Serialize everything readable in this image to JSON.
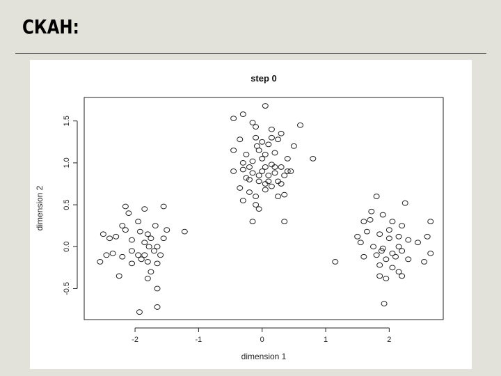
{
  "slide": {
    "title": "СКАН:"
  },
  "chart_data": {
    "type": "scatter",
    "title": "step 0",
    "xlabel": "dimension 1",
    "ylabel": "dimension 2",
    "xlim": [
      -2.8,
      2.85
    ],
    "ylim": [
      -0.87,
      1.78
    ],
    "x_ticks": [
      "-2",
      "-1",
      "0",
      "1",
      "2"
    ],
    "x_tick_values": [
      -2,
      -1,
      0,
      1,
      2
    ],
    "y_ticks": [
      "-0.5",
      "0.0",
      "0.5",
      "1.0",
      "1.5"
    ],
    "y_tick_values": [
      -0.5,
      0,
      0.5,
      1,
      1.5
    ],
    "grid": false,
    "points": [
      [
        -2.05,
        -0.2
      ],
      [
        -1.93,
        -0.78
      ],
      [
        -1.85,
        0.45
      ],
      [
        -1.92,
        0.18
      ],
      [
        -2.05,
        0.08
      ],
      [
        -2.15,
        0.2
      ],
      [
        -1.8,
        0.15
      ],
      [
        -1.78,
        0.0
      ],
      [
        -1.7,
        -0.05
      ],
      [
        -1.85,
        -0.1
      ],
      [
        -2.2,
        0.25
      ],
      [
        -2.4,
        0.1
      ],
      [
        -2.5,
        0.15
      ],
      [
        -2.45,
        -0.1
      ],
      [
        -2.55,
        -0.18
      ],
      [
        -2.35,
        -0.08
      ],
      [
        -2.2,
        -0.12
      ],
      [
        -1.95,
        -0.1
      ],
      [
        -1.6,
        -0.1
      ],
      [
        -1.65,
        0.0
      ],
      [
        -1.55,
        0.1
      ],
      [
        -1.5,
        0.2
      ],
      [
        -1.65,
        -0.2
      ],
      [
        -1.75,
        -0.3
      ],
      [
        -1.9,
        -0.15
      ],
      [
        -2.1,
        0.4
      ],
      [
        -2.15,
        0.48
      ],
      [
        -1.55,
        0.48
      ],
      [
        -1.65,
        -0.5
      ],
      [
        -1.65,
        -0.72
      ],
      [
        -1.75,
        0.1
      ],
      [
        -1.95,
        0.3
      ],
      [
        -1.22,
        0.18
      ],
      [
        -2.05,
        -0.05
      ],
      [
        -1.85,
        0.05
      ],
      [
        -1.8,
        -0.18
      ],
      [
        -2.25,
        -0.35
      ],
      [
        -1.8,
        -0.38
      ],
      [
        -1.68,
        0.25
      ],
      [
        -2.3,
        0.12
      ],
      [
        -0.3,
        1.58
      ],
      [
        0.05,
        1.68
      ],
      [
        -0.45,
        1.53
      ],
      [
        -0.15,
        1.48
      ],
      [
        -0.1,
        1.43
      ],
      [
        0.15,
        1.4
      ],
      [
        0.3,
        1.35
      ],
      [
        0.6,
        1.45
      ],
      [
        -0.35,
        1.28
      ],
      [
        -0.1,
        1.3
      ],
      [
        0.0,
        1.25
      ],
      [
        0.1,
        1.22
      ],
      [
        0.25,
        1.28
      ],
      [
        0.5,
        1.2
      ],
      [
        -0.45,
        1.15
      ],
      [
        -0.25,
        1.1
      ],
      [
        -0.05,
        1.15
      ],
      [
        0.05,
        1.1
      ],
      [
        0.2,
        1.12
      ],
      [
        0.4,
        1.05
      ],
      [
        -0.3,
        1.0
      ],
      [
        -0.15,
        1.02
      ],
      [
        0.0,
        1.05
      ],
      [
        0.15,
        0.98
      ],
      [
        0.3,
        0.95
      ],
      [
        0.8,
        1.05
      ],
      [
        -0.45,
        0.9
      ],
      [
        -0.3,
        0.92
      ],
      [
        -0.15,
        0.88
      ],
      [
        0.0,
        0.9
      ],
      [
        0.1,
        0.85
      ],
      [
        0.2,
        0.88
      ],
      [
        0.35,
        0.85
      ],
      [
        0.45,
        0.9
      ],
      [
        -0.2,
        0.8
      ],
      [
        -0.05,
        0.78
      ],
      [
        0.05,
        0.75
      ],
      [
        0.15,
        0.72
      ],
      [
        0.25,
        0.78
      ],
      [
        -0.35,
        0.7
      ],
      [
        -0.2,
        0.65
      ],
      [
        -0.1,
        0.6
      ],
      [
        0.05,
        0.68
      ],
      [
        0.25,
        0.6
      ],
      [
        0.35,
        0.62
      ],
      [
        -0.3,
        0.55
      ],
      [
        -0.1,
        0.5
      ],
      [
        -0.05,
        0.45
      ],
      [
        -0.15,
        0.3
      ],
      [
        0.35,
        0.3
      ],
      [
        -0.05,
        0.85
      ],
      [
        0.2,
        0.95
      ],
      [
        -0.2,
        0.95
      ],
      [
        0.1,
        0.78
      ],
      [
        0.4,
        0.9
      ],
      [
        -0.25,
        0.82
      ],
      [
        0.05,
        0.95
      ],
      [
        -0.08,
        1.2
      ],
      [
        0.15,
        1.3
      ],
      [
        0.3,
        0.75
      ],
      [
        1.8,
        0.6
      ],
      [
        1.72,
        0.42
      ],
      [
        2.25,
        0.52
      ],
      [
        1.6,
        0.3
      ],
      [
        1.9,
        0.38
      ],
      [
        2.05,
        0.3
      ],
      [
        2.2,
        0.25
      ],
      [
        2.65,
        0.3
      ],
      [
        1.5,
        0.12
      ],
      [
        1.65,
        0.18
      ],
      [
        1.85,
        0.15
      ],
      [
        2.0,
        0.1
      ],
      [
        2.15,
        0.12
      ],
      [
        2.3,
        0.08
      ],
      [
        2.6,
        0.12
      ],
      [
        1.55,
        0.05
      ],
      [
        1.75,
        0.0
      ],
      [
        1.9,
        -0.02
      ],
      [
        2.05,
        -0.08
      ],
      [
        2.2,
        -0.05
      ],
      [
        2.45,
        0.05
      ],
      [
        2.65,
        -0.08
      ],
      [
        1.6,
        -0.12
      ],
      [
        1.8,
        -0.1
      ],
      [
        1.95,
        -0.15
      ],
      [
        2.1,
        -0.12
      ],
      [
        2.3,
        -0.15
      ],
      [
        2.55,
        -0.18
      ],
      [
        1.85,
        -0.22
      ],
      [
        2.05,
        -0.25
      ],
      [
        2.15,
        -0.3
      ],
      [
        2.2,
        -0.35
      ],
      [
        1.95,
        -0.38
      ],
      [
        1.85,
        -0.35
      ],
      [
        1.92,
        -0.68
      ],
      [
        1.15,
        -0.18
      ],
      [
        2.0,
        0.2
      ],
      [
        1.7,
        0.32
      ],
      [
        2.15,
        0.0
      ],
      [
        1.88,
        -0.05
      ]
    ]
  }
}
